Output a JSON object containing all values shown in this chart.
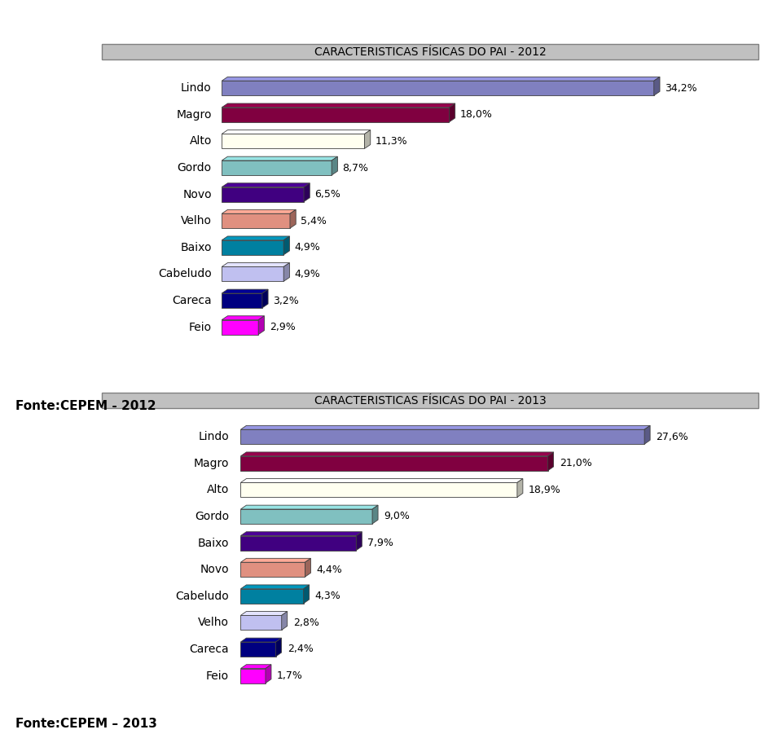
{
  "chart1": {
    "title": "CARACTERISTICAS FÍSICAS DO PAI - 2012",
    "categories": [
      "Lindo",
      "Magro",
      "Alto",
      "Gordo",
      "Novo",
      "Velho",
      "Baixo",
      "Cabeludo",
      "Careca",
      "Feio"
    ],
    "values": [
      34.2,
      18.0,
      11.3,
      8.7,
      6.5,
      5.4,
      4.9,
      4.9,
      3.2,
      2.9
    ],
    "labels": [
      "34,2%",
      "18,0%",
      "11,3%",
      "8,7%",
      "6,5%",
      "5,4%",
      "4,9%",
      "4,9%",
      "3,2%",
      "2,9%"
    ],
    "colors": [
      "#8080C0",
      "#800040",
      "#FFFFF0",
      "#80C0C0",
      "#400080",
      "#E09080",
      "#0080A0",
      "#C0C0F0",
      "#000080",
      "#FF00FF"
    ],
    "fonte": "Fonte:CEPEM - 2012"
  },
  "chart2": {
    "title": "CARACTERISTICAS FÍSICAS DO PAI - 2013",
    "categories": [
      "Lindo",
      "Magro",
      "Alto",
      "Gordo",
      "Baixo",
      "Novo",
      "Cabeludo",
      "Velho",
      "Careca",
      "Feio"
    ],
    "values": [
      27.6,
      21.0,
      18.9,
      9.0,
      7.9,
      4.4,
      4.3,
      2.8,
      2.4,
      1.7
    ],
    "labels": [
      "27,6%",
      "21,0%",
      "18,9%",
      "9,0%",
      "7,9%",
      "4,4%",
      "4,3%",
      "2,8%",
      "2,4%",
      "1,7%"
    ],
    "colors": [
      "#8080C0",
      "#800040",
      "#FFFFF0",
      "#80C0C0",
      "#400080",
      "#E09080",
      "#0080A0",
      "#C0C0F0",
      "#000080",
      "#FF00FF"
    ],
    "fonte": "Fonte:CEPEM – 2013"
  },
  "bg_color": "#FFFFFF",
  "title_bg": "#C0C0C0",
  "title_border": "#808080",
  "bar_height": 0.55,
  "label_fontsize": 9,
  "title_fontsize": 10,
  "cat_fontsize": 10,
  "fonte_fontsize": 11
}
